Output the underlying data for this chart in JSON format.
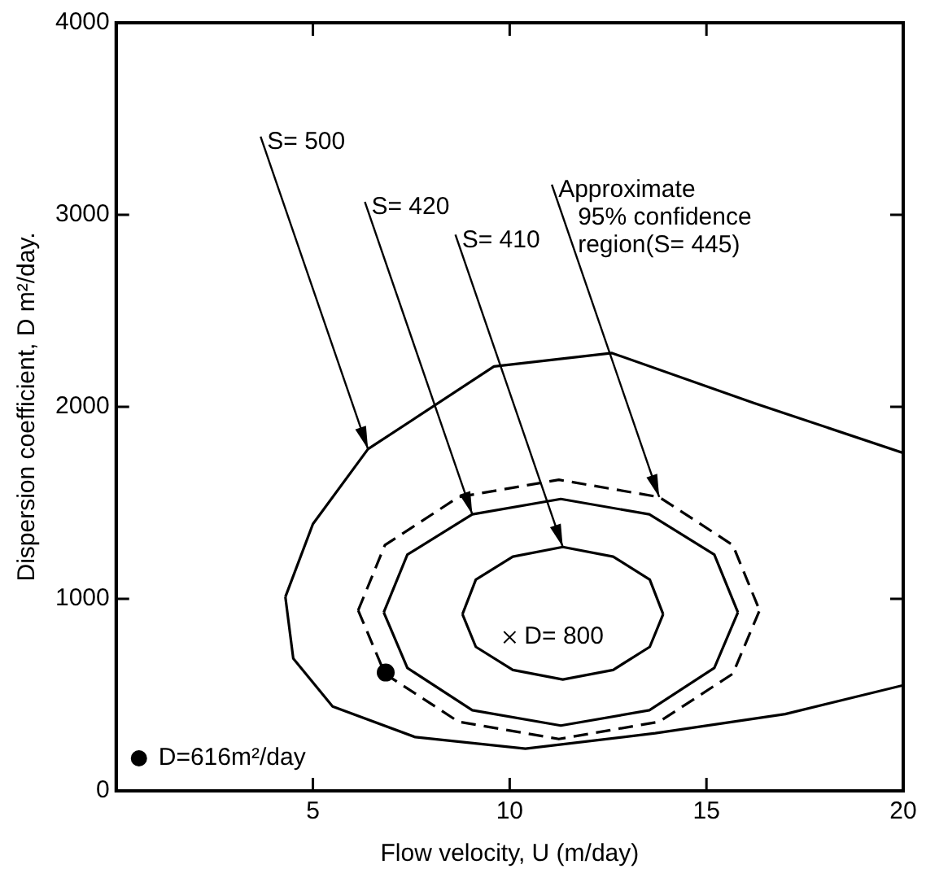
{
  "chart_data": {
    "type": "line",
    "xlabel": "Flow velocity, U (m/day)",
    "ylabel": "Dispersion coefficient, D m²/day.",
    "xlim": [
      0,
      20
    ],
    "xticks": [
      5,
      10,
      15,
      20
    ],
    "ylim": [
      0,
      4000
    ],
    "yticks": [
      0,
      1000,
      2000,
      3000,
      4000
    ],
    "grid": false,
    "legend": "bottom left",
    "marker": "none",
    "line_style": "solid",
    "series": [
      {
        "color": "#000000",
        "x": [
          4.3,
          5.0,
          6.4,
          9.6,
          12.6,
          16.2,
          20
        ],
        "values": [
          1010,
          1390,
          1780,
          2210,
          2280,
          2020,
          1760
        ]
      },
      {
        "color": "#000000",
        "x": [
          4.3,
          4.5,
          5.5,
          7.6,
          10.4,
          13.7,
          17.0,
          20
        ],
        "values": [
          1010,
          690,
          440,
          280,
          220,
          300,
          400,
          550
        ]
      },
      {
        "color": "#000000",
        "line_style": "dashed",
        "x": [
          6.15,
          6.83,
          8.7,
          11.25,
          13.8,
          15.67,
          16.35
        ],
        "values": [
          940,
          1280,
          1530,
          1620,
          1530,
          1280,
          940
        ]
      },
      {
        "color": "#000000",
        "line_style": "dashed",
        "x": [
          6.15,
          6.83,
          8.7,
          11.25,
          13.8,
          15.67,
          16.35
        ],
        "values": [
          940,
          610,
          360,
          270,
          360,
          610,
          940
        ]
      },
      {
        "color": "#000000",
        "x": [
          6.8,
          7.4,
          9.05,
          11.3,
          13.55,
          15.2,
          15.8
        ],
        "values": [
          930,
          1230,
          1440,
          1520,
          1440,
          1230,
          930
        ]
      },
      {
        "color": "#000000",
        "x": [
          6.8,
          7.4,
          9.05,
          11.3,
          13.55,
          15.2,
          15.8
        ],
        "values": [
          930,
          640,
          420,
          340,
          420,
          640,
          930
        ]
      },
      {
        "color": "#000000",
        "x": [
          8.8,
          9.14,
          10.08,
          11.35,
          12.63,
          13.56,
          13.9
        ],
        "values": [
          920,
          1100,
          1220,
          1270,
          1220,
          1100,
          920
        ]
      },
      {
        "color": "#000000",
        "x": [
          8.8,
          9.14,
          10.08,
          11.35,
          12.63,
          13.56,
          13.9
        ],
        "values": [
          920,
          750,
          630,
          580,
          630,
          750,
          920
        ]
      },
      {
        "type": "scatter",
        "marker": "cross",
        "color": "#000000",
        "x": [
          10.0
        ],
        "values": [
          800
        ],
        "value_labels": [
          "D= 800"
        ]
      },
      {
        "type": "scatter",
        "marker": "circle",
        "color": "#000000",
        "name": "D=616m²/day",
        "x": [
          6.85
        ],
        "values": [
          616
        ]
      }
    ],
    "annotations": [
      "S= 500",
      {
        "text": "S= 420",
        "x": 9.05,
        "y": 1440
      },
      "S= 410",
      "Approximate\n95% confidence\nregion(S= 445)"
    ]
  }
}
